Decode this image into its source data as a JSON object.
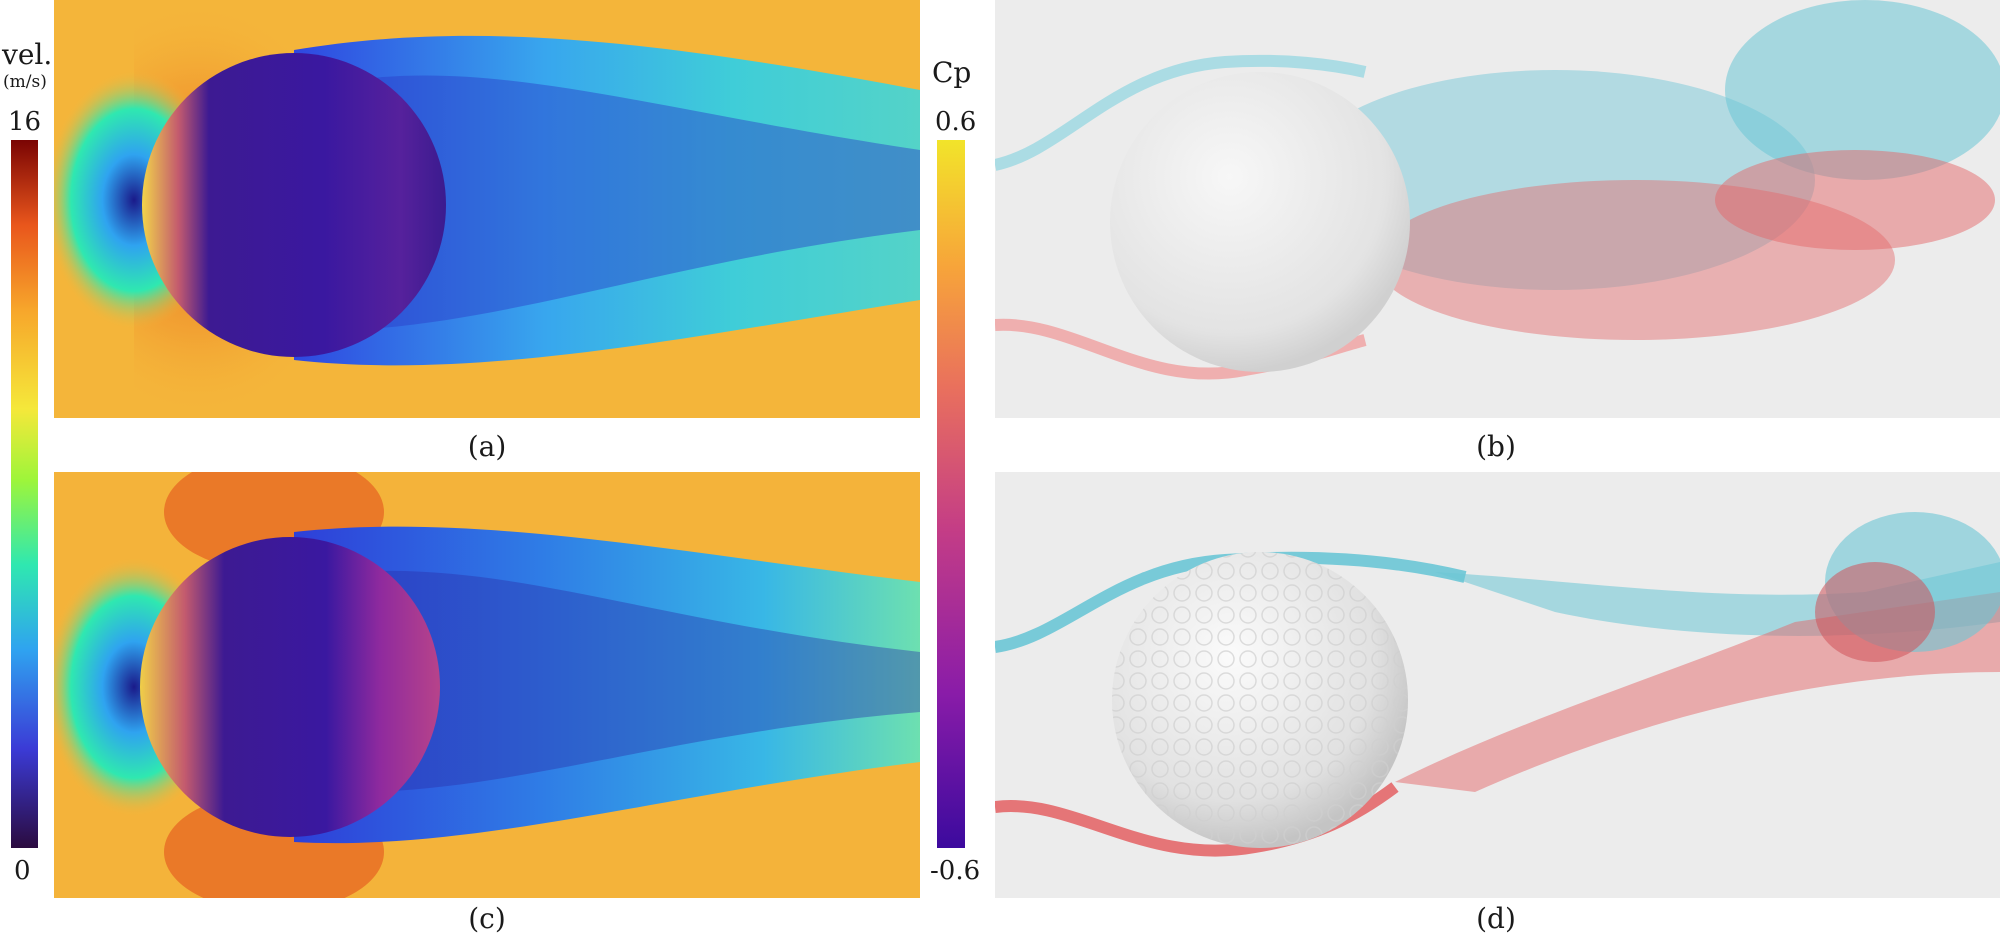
{
  "colorbar_velocity": {
    "title": "vel.",
    "unit": "(m/s)",
    "max_label": "16",
    "min_label": "0",
    "colormap": [
      "#2b0b3f",
      "#3b3bd6",
      "#2fa3f0",
      "#2fe8b0",
      "#9ef53a",
      "#f5e83a",
      "#f7a62b",
      "#e9561c",
      "#7a0403"
    ]
  },
  "colorbar_pressure": {
    "title": "Cp",
    "max_label": "0.6",
    "min_label": "-0.6",
    "colormap": [
      "#3c0a9e",
      "#8a1ca8",
      "#c43d86",
      "#e9705d",
      "#f7a43a",
      "#f2e42a"
    ]
  },
  "panels": {
    "a": {
      "caption": "(a)",
      "content": "smooth sphere velocity field"
    },
    "b": {
      "caption": "(b)",
      "content": "smooth sphere smoke rendering"
    },
    "c": {
      "caption": "(c)",
      "content": "golf ball velocity field"
    },
    "d": {
      "caption": "(d)",
      "content": "golf ball smoke rendering"
    }
  },
  "colors": {
    "smoke_blue": "#6cc6d6",
    "smoke_red": "#e4686a",
    "render_background": "#ececec",
    "field_background": "#f3b63a"
  }
}
